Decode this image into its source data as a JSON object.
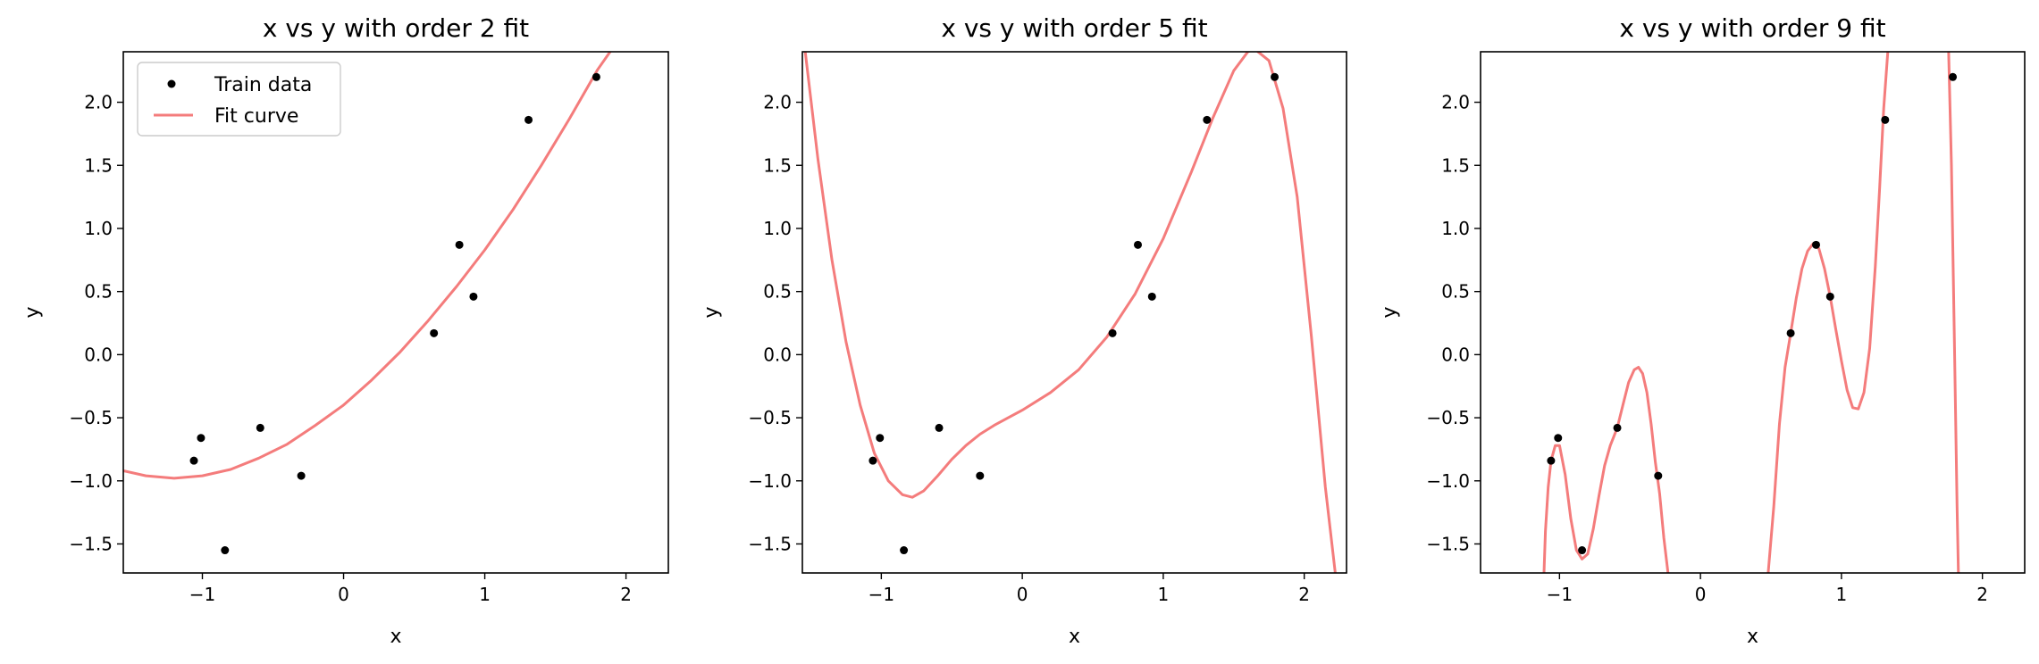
{
  "colors": {
    "fit_curve": "#f47c7c",
    "train_points": "#000000",
    "axes": "#000000",
    "background": "#ffffff"
  },
  "chart_data": [
    {
      "type": "scatter",
      "title": "x vs y with order 2 fit",
      "xlabel": "x",
      "ylabel": "y",
      "xlim": [
        -1.56,
        2.3
      ],
      "ylim": [
        -1.73,
        2.4
      ],
      "xticks": [
        -1,
        0,
        1,
        2
      ],
      "yticks": [
        -1.5,
        -1.0,
        -0.5,
        0.0,
        0.5,
        1.0,
        1.5,
        2.0
      ],
      "xtick_labels": [
        "−1",
        "0",
        "1",
        "2"
      ],
      "ytick_labels": [
        "−1.5",
        "−1.0",
        "−0.5",
        "0.0",
        "0.5",
        "1.0",
        "1.5",
        "2.0"
      ],
      "grid": false,
      "legend": {
        "placement": "upper-left",
        "entries": [
          "Train data",
          "Fit curve"
        ]
      },
      "series": [
        {
          "name": "Train data",
          "kind": "points",
          "x": [
            -1.06,
            -1.01,
            -0.84,
            -0.59,
            -0.3,
            0.64,
            0.82,
            0.92,
            1.31,
            1.79
          ],
          "y": [
            -0.84,
            -0.66,
            -1.55,
            -0.58,
            -0.96,
            0.17,
            0.87,
            0.46,
            1.86,
            2.2
          ]
        },
        {
          "name": "Fit curve",
          "kind": "line",
          "x": [
            -1.56,
            -1.4,
            -1.2,
            -1.0,
            -0.8,
            -0.6,
            -0.4,
            -0.2,
            0.0,
            0.2,
            0.4,
            0.6,
            0.8,
            1.0,
            1.2,
            1.4,
            1.6,
            1.8,
            1.9
          ],
          "y": [
            -0.92,
            -0.96,
            -0.98,
            -0.96,
            -0.91,
            -0.82,
            -0.71,
            -0.56,
            -0.4,
            -0.2,
            0.02,
            0.27,
            0.54,
            0.83,
            1.15,
            1.5,
            1.87,
            2.26,
            2.42
          ]
        }
      ]
    },
    {
      "type": "scatter",
      "title": "x vs y with order 5 fit",
      "xlabel": "x",
      "ylabel": "y",
      "xlim": [
        -1.56,
        2.3
      ],
      "ylim": [
        -1.73,
        2.4
      ],
      "xticks": [
        -1,
        0,
        1,
        2
      ],
      "yticks": [
        -1.5,
        -1.0,
        -0.5,
        0.0,
        0.5,
        1.0,
        1.5,
        2.0
      ],
      "xtick_labels": [
        "−1",
        "0",
        "1",
        "2"
      ],
      "ytick_labels": [
        "−1.5",
        "−1.0",
        "−0.5",
        "0.0",
        "0.5",
        "1.0",
        "1.5",
        "2.0"
      ],
      "grid": false,
      "series": [
        {
          "name": "Train data",
          "kind": "points",
          "x": [
            -1.06,
            -1.01,
            -0.84,
            -0.59,
            -0.3,
            0.64,
            0.82,
            0.92,
            1.31,
            1.79
          ],
          "y": [
            -0.84,
            -0.66,
            -1.55,
            -0.58,
            -0.96,
            0.17,
            0.87,
            0.46,
            1.86,
            2.2
          ]
        },
        {
          "name": "Fit curve",
          "kind": "line",
          "x": [
            -1.54,
            -1.45,
            -1.35,
            -1.25,
            -1.15,
            -1.05,
            -0.95,
            -0.85,
            -0.78,
            -0.7,
            -0.6,
            -0.5,
            -0.4,
            -0.3,
            -0.2,
            -0.1,
            0.0,
            0.2,
            0.4,
            0.6,
            0.8,
            1.0,
            1.2,
            1.35,
            1.5,
            1.6,
            1.65,
            1.75,
            1.85,
            1.95,
            2.05,
            2.15,
            2.22
          ],
          "y": [
            2.4,
            1.55,
            0.75,
            0.1,
            -0.4,
            -0.78,
            -1.0,
            -1.11,
            -1.13,
            -1.08,
            -0.96,
            -0.83,
            -0.72,
            -0.63,
            -0.56,
            -0.5,
            -0.44,
            -0.3,
            -0.12,
            0.14,
            0.48,
            0.92,
            1.45,
            1.87,
            2.25,
            2.4,
            2.42,
            2.33,
            1.95,
            1.25,
            0.15,
            -1.05,
            -1.73
          ]
        }
      ]
    },
    {
      "type": "scatter",
      "title": "x vs y with order 9 fit",
      "xlabel": "x",
      "ylabel": "y",
      "xlim": [
        -1.56,
        2.3
      ],
      "ylim": [
        -1.73,
        2.4
      ],
      "xticks": [
        -1,
        0,
        1,
        2
      ],
      "yticks": [
        -1.5,
        -1.0,
        -0.5,
        0.0,
        0.5,
        1.0,
        1.5,
        2.0
      ],
      "xtick_labels": [
        "−1",
        "0",
        "1",
        "2"
      ],
      "ytick_labels": [
        "−1.5",
        "−1.0",
        "−0.5",
        "0.0",
        "0.5",
        "1.0",
        "1.5",
        "2.0"
      ],
      "grid": false,
      "series": [
        {
          "name": "Train data",
          "kind": "points",
          "x": [
            -1.06,
            -1.01,
            -0.84,
            -0.59,
            -0.3,
            0.64,
            0.82,
            0.92,
            1.31,
            1.79
          ],
          "y": [
            -0.84,
            -0.66,
            -1.55,
            -0.58,
            -0.96,
            0.17,
            0.87,
            0.46,
            1.86,
            2.2
          ]
        },
        {
          "name": "Fit curve",
          "kind": "line",
          "segments": [
            {
              "x": [
                -1.11,
                -1.1,
                -1.08,
                -1.06,
                -1.03,
                -1.0,
                -0.96,
                -0.92,
                -0.88,
                -0.84,
                -0.8,
                -0.76,
                -0.72,
                -0.68,
                -0.64,
                -0.59,
                -0.55,
                -0.51,
                -0.47,
                -0.44,
                -0.41,
                -0.38,
                -0.35,
                -0.32,
                -0.29,
                -0.26,
                -0.23
              ],
              "y": [
                -1.73,
                -1.4,
                -1.05,
                -0.84,
                -0.72,
                -0.72,
                -0.95,
                -1.3,
                -1.55,
                -1.62,
                -1.58,
                -1.38,
                -1.12,
                -0.88,
                -0.72,
                -0.58,
                -0.4,
                -0.22,
                -0.12,
                -0.1,
                -0.15,
                -0.3,
                -0.55,
                -0.85,
                -1.1,
                -1.45,
                -1.73
              ]
            },
            {
              "x": [
                0.48,
                0.52,
                0.56,
                0.6,
                0.64,
                0.68,
                0.72,
                0.76,
                0.8,
                0.84,
                0.88,
                0.92,
                0.96,
                1.0,
                1.04,
                1.08,
                1.12,
                1.16,
                1.2,
                1.24,
                1.27,
                1.3,
                1.33
              ],
              "y": [
                -1.73,
                -1.2,
                -0.55,
                -0.1,
                0.17,
                0.45,
                0.68,
                0.82,
                0.88,
                0.84,
                0.68,
                0.46,
                0.2,
                -0.05,
                -0.28,
                -0.42,
                -0.43,
                -0.3,
                0.05,
                0.7,
                1.3,
                1.95,
                2.42
              ]
            },
            {
              "x": [
                1.76,
                1.78,
                1.8,
                1.82,
                1.83
              ],
              "y": [
                2.42,
                1.5,
                0.2,
                -1.2,
                -1.73
              ]
            }
          ]
        }
      ]
    }
  ]
}
